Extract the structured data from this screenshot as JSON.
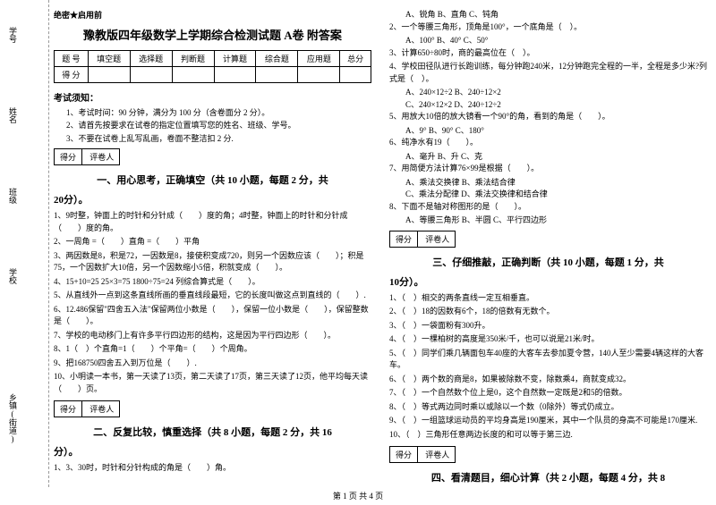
{
  "binding": {
    "labels": [
      "学号",
      "姓名",
      "班级",
      "学校",
      "乡镇(街道)"
    ],
    "dashedNote": "线"
  },
  "header": {
    "confidential": "绝密★启用前",
    "title": "豫教版四年级数学上学期综合检测试题 A卷 附答案"
  },
  "scoreTable": {
    "head": [
      "题 号",
      "填空题",
      "选择题",
      "判断题",
      "计算题",
      "综合题",
      "应用题",
      "总分"
    ],
    "row2": "得 分"
  },
  "notice": {
    "heading": "考试须知：",
    "items": [
      "1、考试时间：90 分钟，满分为 100 分（含卷面分 2 分）。",
      "2、请首先按要求在试卷的指定位置填写您的姓名、班级、学号。",
      "3、不要在试卷上乱写乱画，卷面不整洁扣 2 分."
    ]
  },
  "scoreBox": {
    "c1": "得分",
    "c2": "评卷人"
  },
  "parts": {
    "p1": {
      "title": "一、用心思考，正确填空（共 10 小题，每题 2 分，共",
      "points": "20分）。"
    },
    "p2": {
      "title": "二、反复比较，慎重选择（共 8 小题，每题 2 分，共 16",
      "points": "分）。"
    },
    "p3": {
      "title": "三、仔细推敲，正确判断（共 10 小题，每题 1 分，共",
      "points": "10分）。"
    },
    "p4": {
      "title": "四、看清题目，细心计算（共 2 小题，每题 4 分，共 8"
    }
  },
  "fill": {
    "q1": "1、9时整，钟面上的时针和分针成（　　）度的角；4时整，钟面上的时针和分针成（　　）度的角。",
    "q2": "2、一周角 =（　　）直角 =（　　）平角",
    "q3": "3、两因数是8，积是72，一因数是8，接使积变成720，则另一个因数应该（　　）；积是75，一个因数扩大10倍，另一个因数缩小5倍，积就变成（　　）。",
    "q4": "4、15+10=25  25×3=75  1800÷75=24  列综合算式是（　　）。",
    "q5": "5、从直线外一点到这条直线所画的垂直线段最短，它的长度叫做这点到直线的（　　）.",
    "q6": "6、12.486保留\"四舍五入法\"保留两位小数是（　　），保留一位小数是（　　），保留整数是（　　）。",
    "q7": "7、学校的电动移门上有许多平行四边形的结构，这是因为平行四边形（　　）。",
    "q8": "8、1（　）个直角=1（　　）个平角=（　　）个周角。",
    "q9": "9、把168750四舍五入到万位是（　　）.",
    "q10": "10、小明读一本书，第一天读了13页，第二天读了17页，第三天读了12页，他平均每天读（　　）页。"
  },
  "choice": {
    "q1": "1、3、30时，时针和分针构成的角是（　　）角。",
    "q1o": {
      "a": "A、锐角",
      "b": "B、直角",
      "c": "C、钝角"
    },
    "q2": "2、一个等腰三角形，顶角是100°，一个底角是（　）。",
    "q2o": {
      "a": "A、100°",
      "b": "B、40°",
      "c": "C、50°"
    },
    "q3": "3、计算650÷80时，商的最高位在（　）。",
    "q4": "4、学校田径队进行长跑训练，每分钟跑240米，12分钟跑完全程的一半，全程是多少米?列式是（　）。",
    "q4o": {
      "a": "A、240×12÷2",
      "b": "B、240÷12×2",
      "c": "C、240×12×2",
      "d": "D、240÷12÷2"
    },
    "q5": "5、用放大10倍的放大镜看一个90°的角，看到的角是（　　）。",
    "q5o": {
      "a": "A、9°",
      "b": "B、90°",
      "c": "C、180°"
    },
    "q6": "6、纯净水有19（　　）。",
    "q6o": {
      "a": "A、毫升",
      "b": "B、升",
      "c": "C、克"
    },
    "q7": "7、用简便方法计算76×99是根据（　　）。",
    "q7o": {
      "a": "A、乘法交换律",
      "b": "B、乘法结合律",
      "c": "C、乘法分配律",
      "d": "D、乘法交换律和结合律"
    },
    "q8": "8、下面不是轴对称图形的是（　　）。",
    "q8o": {
      "a": "A、等腰三角形",
      "b": "B、半圆",
      "c": "C、平行四边形"
    }
  },
  "judge": {
    "q1": "1、（　）相交的两条直线一定互相垂直。",
    "q2": "2、（　）18的因数有6个，18的倍数有无数个。",
    "q3": "3、（　）一袋面粉有300升。",
    "q4": "4、（　）一棵柏树的高度是350米/千，也可以说是21米/时。",
    "q5": "5、（　）同学们乘几辆面包车40座的大客车去参加夏令营，140人至少需要4辆这样的大客车。",
    "q6": "6、（　）两个数的商是8，如果被除数不变，除数乘4，商就变成32。",
    "q7": "7、（　）一个自然数个位上是0，这个自然数一定既是2和5的倍数。",
    "q8": "8、（　）等式两边同时乘以或除以一个数（0除外）等式仍成立。",
    "q9": "9、（　）一组篮球运动员的平均身高是190厘米，其中一个队员的身高不可能是170厘米.",
    "q10": "10、（　）三角形任意两边长度的和可以等于第三边."
  },
  "footer": "第 1 页 共 4 页"
}
